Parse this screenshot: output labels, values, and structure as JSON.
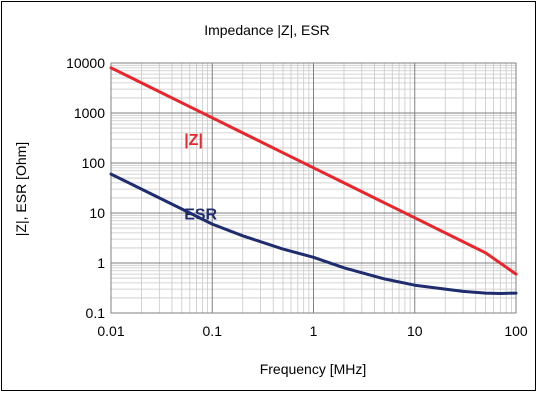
{
  "chart_data": {
    "type": "line",
    "title": "Impedance |Z|,  ESR",
    "xlabel": "Frequency [MHz]",
    "ylabel": "|Z|, ESR [Ohm]",
    "x_scale": "log",
    "y_scale": "log",
    "xlim": [
      0.01,
      100
    ],
    "ylim": [
      0.1,
      10000
    ],
    "x_ticks": [
      0.01,
      0.1,
      1,
      10,
      100
    ],
    "x_tick_labels": [
      "0.01",
      "0.1",
      "1",
      "10",
      "100"
    ],
    "y_ticks": [
      0.1,
      1,
      10,
      100,
      1000,
      10000
    ],
    "y_tick_labels": [
      "0.1",
      "1",
      "10",
      "100",
      "1000",
      "10000"
    ],
    "grid": true,
    "legend": "none",
    "series": [
      {
        "name": "|Z|",
        "color": "#e8262b",
        "label_at": [
          0.0135,
          230
        ],
        "x": [
          0.01,
          0.02,
          0.05,
          0.1,
          0.2,
          0.5,
          1,
          2,
          5,
          10,
          20,
          50,
          100
        ],
        "y": [
          8000,
          4000,
          1600,
          800,
          400,
          160,
          80,
          40,
          16,
          8,
          4,
          1.6,
          0.6
        ]
      },
      {
        "name": "ESR",
        "color": "#1f2c6e",
        "label_at": [
          0.0135,
          7.4
        ],
        "x": [
          0.01,
          0.02,
          0.05,
          0.1,
          0.2,
          0.5,
          1,
          2,
          5,
          10,
          20,
          30,
          50,
          70,
          100
        ],
        "y": [
          60,
          30,
          12,
          6,
          3.5,
          1.9,
          1.3,
          0.8,
          0.48,
          0.36,
          0.3,
          0.27,
          0.25,
          0.245,
          0.25
        ]
      }
    ]
  }
}
